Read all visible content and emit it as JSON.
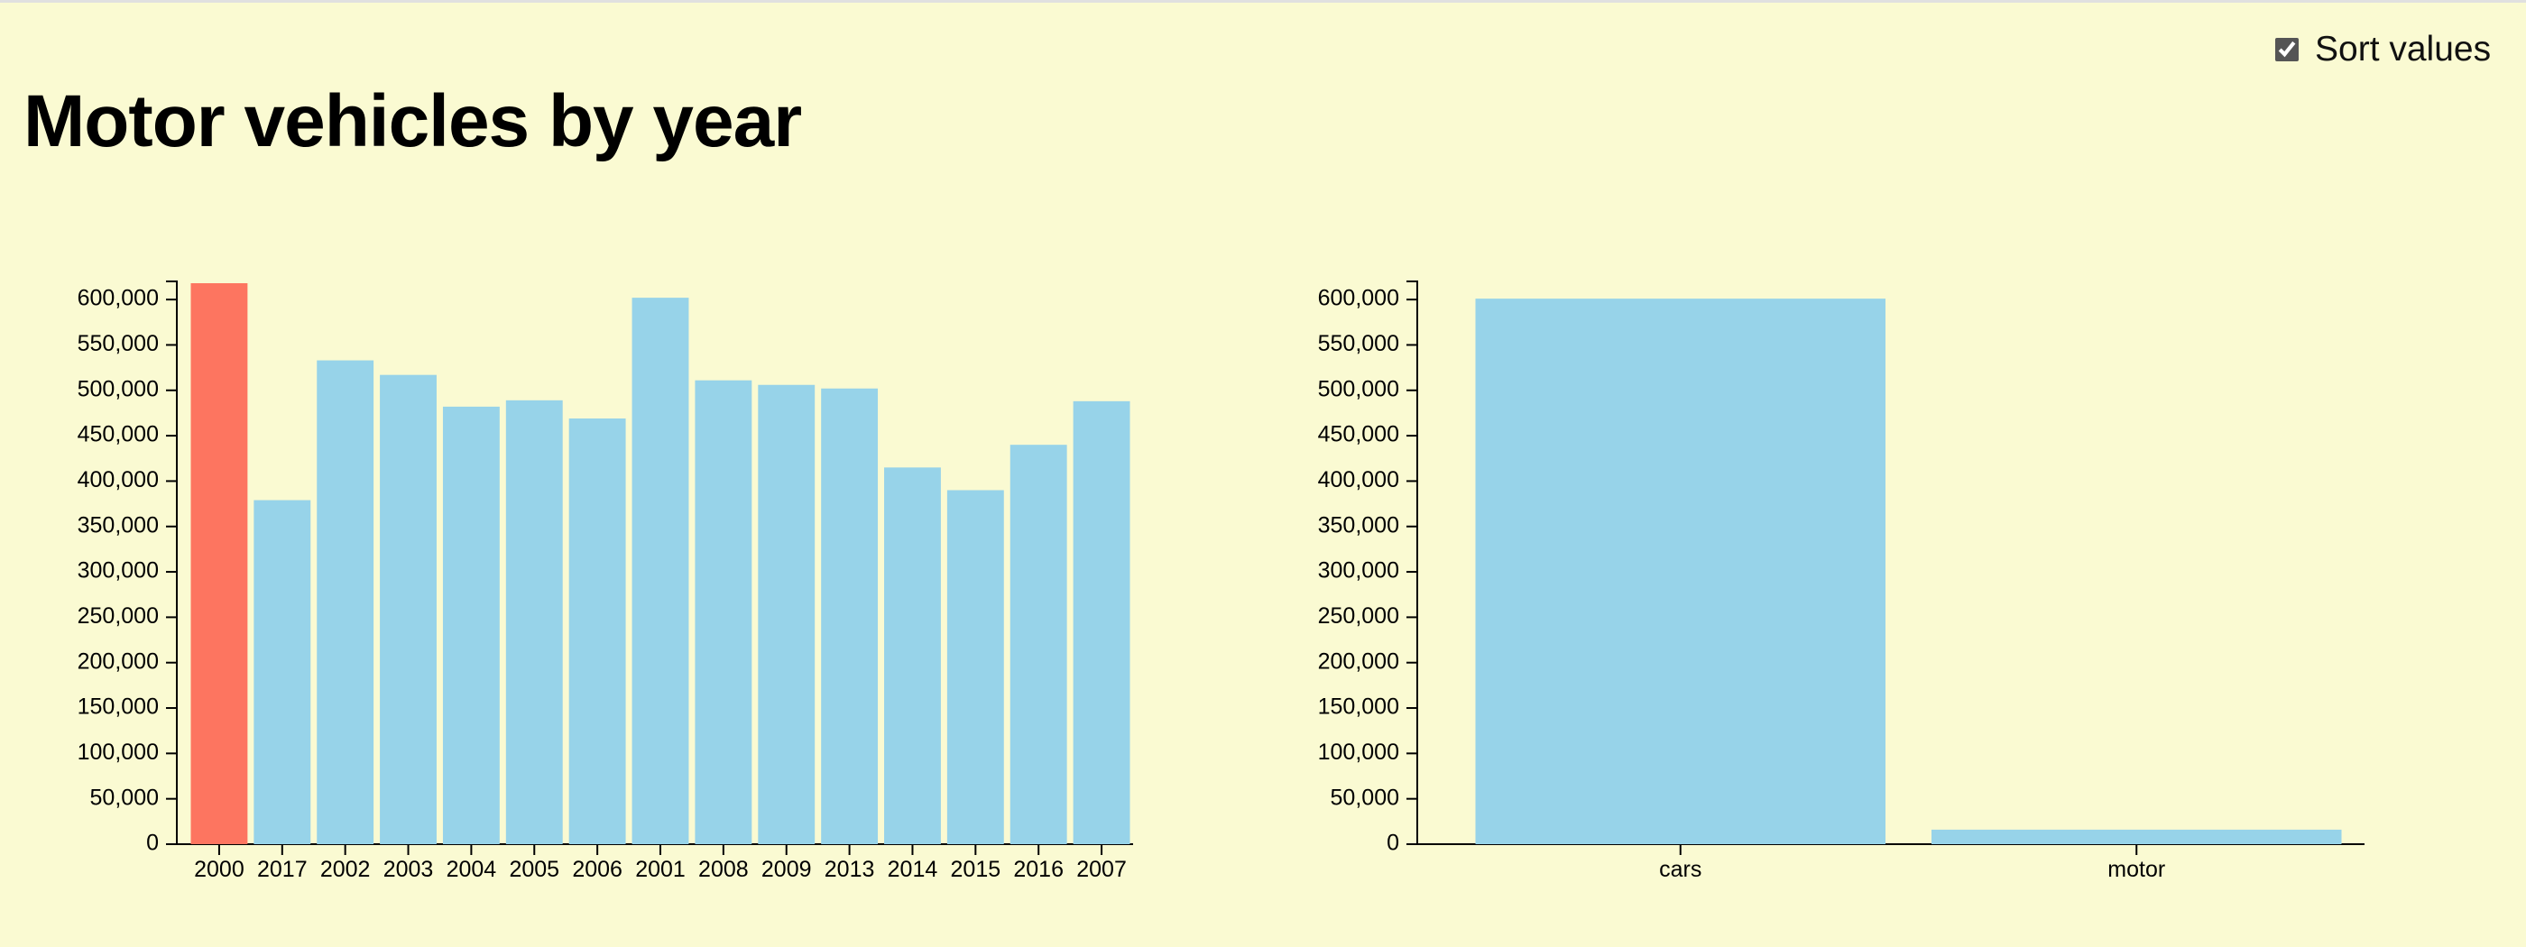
{
  "page": {
    "title": "Motor vehicles by year",
    "sort_label": "Sort values",
    "sort_checked": true
  },
  "colors": {
    "background": "#fafad2",
    "bar": "#97d3e9",
    "highlight": "#fd7560",
    "axis": "#000000"
  },
  "chart_data": [
    {
      "type": "bar",
      "title": "",
      "xlabel": "",
      "ylabel": "",
      "ylim": [
        0,
        620000
      ],
      "yticks": [
        0,
        50000,
        100000,
        150000,
        200000,
        250000,
        300000,
        350000,
        400000,
        450000,
        500000,
        550000,
        600000
      ],
      "categories": [
        "2000",
        "2017",
        "2002",
        "2003",
        "2004",
        "2005",
        "2006",
        "2001",
        "2008",
        "2009",
        "2013",
        "2014",
        "2015",
        "2016",
        "2007"
      ],
      "values": [
        618000,
        379000,
        533000,
        517000,
        482000,
        489000,
        469000,
        602000,
        511000,
        506000,
        502000,
        415000,
        390000,
        440000,
        488000
      ],
      "highlighted": [
        "2000"
      ],
      "grid": false
    },
    {
      "type": "bar",
      "title": "",
      "xlabel": "",
      "ylabel": "",
      "ylim": [
        0,
        620000
      ],
      "yticks": [
        0,
        50000,
        100000,
        150000,
        200000,
        250000,
        300000,
        350000,
        400000,
        450000,
        500000,
        550000,
        600000
      ],
      "categories": [
        "cars",
        "motor"
      ],
      "values": [
        601000,
        16000
      ],
      "grid": false
    }
  ]
}
